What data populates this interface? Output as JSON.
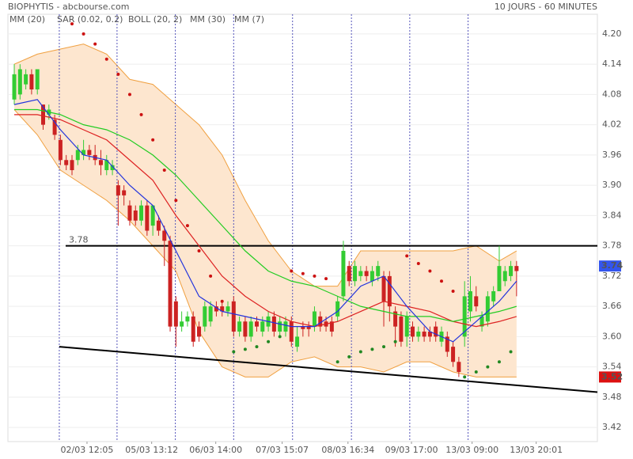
{
  "chart_data": {
    "type": "candlestick",
    "title": "BIOPHYTIS - abcbourse.com",
    "subtitle": "10 JOURS - 60 MINUTES",
    "xlim": [
      -1.1,
      101
    ],
    "ylim": [
      3.392,
      4.239
    ],
    "yticks": [
      {
        "value": 3.42,
        "label": "3.42"
      },
      {
        "value": 3.48,
        "label": "3.48"
      },
      {
        "value": 3.54,
        "label": "3.54"
      },
      {
        "value": 3.6,
        "label": "3.60"
      },
      {
        "value": 3.66,
        "label": "3.66"
      },
      {
        "value": 3.72,
        "label": "3.72"
      },
      {
        "value": 3.78,
        "label": "3.78"
      },
      {
        "value": 3.84,
        "label": "3.84"
      },
      {
        "value": 3.9,
        "label": "3.90"
      },
      {
        "value": 3.96,
        "label": "3.96"
      },
      {
        "value": 4.02,
        "label": "4.02"
      },
      {
        "value": 4.08,
        "label": "4.08"
      },
      {
        "value": 4.14,
        "label": "4.14"
      },
      {
        "value": 4.2,
        "label": "4.20"
      }
    ],
    "xticks": [
      {
        "value": 12.6,
        "label": "02/03 12:05"
      },
      {
        "value": 23.8,
        "label": "05/03 13:12"
      },
      {
        "value": 34.9,
        "label": "06/03 14:00"
      },
      {
        "value": 46.4,
        "label": "07/03 15:07"
      },
      {
        "value": 57.8,
        "label": "08/03 16:34"
      },
      {
        "value": 68.8,
        "label": "09/03 17:00"
      },
      {
        "value": 79.3,
        "label": "13/03 09:00"
      },
      {
        "value": 90.4,
        "label": "13/03 20:01"
      }
    ],
    "day_separators": [
      7.8,
      17.8,
      27.9,
      38,
      48.2,
      58.4,
      68.5,
      78.6
    ],
    "grid": true,
    "up_color": "#33cc33",
    "down_color": "#cc2222",
    "candles": {
      "open": [
        4.07,
        4.08,
        4.1,
        4.12,
        4.09,
        4.06,
        4.04,
        4.03,
        3.99,
        3.95,
        3.95,
        3.95,
        3.96,
        3.97,
        3.96,
        3.95,
        3.93,
        3.93,
        3.9,
        3.89,
        3.86,
        3.85,
        3.83,
        3.86,
        3.82,
        3.83,
        3.81,
        3.79,
        3.67,
        3.62,
        3.63,
        3.64,
        3.62,
        3.62,
        3.63,
        3.66,
        3.66,
        3.65,
        3.67,
        3.61,
        3.63,
        3.6,
        3.63,
        3.61,
        3.62,
        3.64,
        3.61,
        3.61,
        3.63,
        3.58,
        3.62,
        3.62,
        3.62,
        3.64,
        3.63,
        3.63,
        3.64,
        3.68,
        3.74,
        3.71,
        3.72,
        3.73,
        3.71,
        3.72,
        3.72,
        3.72,
        3.65,
        3.64,
        3.6,
        3.62,
        3.6,
        3.61,
        3.61,
        3.62,
        3.59,
        3.6,
        3.58,
        3.55,
        3.6,
        3.65,
        3.68,
        3.62,
        3.63,
        3.67,
        3.69,
        3.71,
        3.72,
        3.74
      ],
      "high": [
        4.14,
        4.14,
        4.13,
        4.13,
        4.13,
        4.06,
        4.06,
        4.04,
        4.0,
        3.96,
        3.96,
        3.98,
        3.99,
        3.98,
        3.98,
        3.97,
        3.96,
        3.95,
        3.91,
        3.9,
        3.87,
        3.86,
        3.87,
        3.87,
        3.86,
        3.84,
        3.82,
        3.8,
        3.68,
        3.65,
        3.65,
        3.65,
        3.63,
        3.67,
        3.67,
        3.67,
        3.67,
        3.67,
        3.68,
        3.64,
        3.64,
        3.64,
        3.64,
        3.64,
        3.65,
        3.65,
        3.64,
        3.64,
        3.64,
        3.62,
        3.63,
        3.63,
        3.66,
        3.65,
        3.64,
        3.64,
        3.68,
        3.79,
        3.75,
        3.75,
        3.74,
        3.74,
        3.74,
        3.75,
        3.73,
        3.73,
        3.66,
        3.65,
        3.65,
        3.63,
        3.62,
        3.62,
        3.62,
        3.63,
        3.62,
        3.61,
        3.59,
        3.56,
        3.71,
        3.72,
        3.7,
        3.65,
        3.69,
        3.7,
        3.78,
        3.74,
        3.75,
        3.75
      ],
      "low": [
        4.06,
        4.07,
        4.09,
        4.08,
        4.08,
        4.01,
        4.03,
        3.99,
        3.94,
        3.93,
        3.92,
        3.94,
        3.95,
        3.95,
        3.94,
        3.92,
        3.92,
        3.92,
        3.82,
        3.86,
        3.82,
        3.82,
        3.82,
        3.8,
        3.8,
        3.8,
        3.74,
        3.61,
        3.58,
        3.61,
        3.62,
        3.58,
        3.59,
        3.61,
        3.62,
        3.64,
        3.64,
        3.64,
        3.6,
        3.6,
        3.59,
        3.59,
        3.61,
        3.6,
        3.61,
        3.6,
        3.6,
        3.6,
        3.58,
        3.57,
        3.6,
        3.6,
        3.61,
        3.61,
        3.61,
        3.6,
        3.63,
        3.67,
        3.7,
        3.7,
        3.71,
        3.71,
        3.7,
        3.71,
        3.62,
        3.63,
        3.58,
        3.58,
        3.58,
        3.59,
        3.59,
        3.59,
        3.59,
        3.59,
        3.58,
        3.56,
        3.54,
        3.52,
        3.58,
        3.63,
        3.65,
        3.61,
        3.62,
        3.66,
        3.69,
        3.7,
        3.71,
        3.68
      ],
      "close": [
        4.12,
        4.13,
        4.12,
        4.09,
        4.13,
        4.02,
        4.05,
        4.0,
        3.95,
        3.94,
        3.93,
        3.97,
        3.97,
        3.96,
        3.95,
        3.94,
        3.95,
        3.94,
        3.88,
        3.88,
        3.83,
        3.83,
        3.86,
        3.81,
        3.86,
        3.81,
        3.79,
        3.62,
        3.62,
        3.63,
        3.64,
        3.59,
        3.6,
        3.66,
        3.66,
        3.65,
        3.65,
        3.66,
        3.61,
        3.63,
        3.6,
        3.63,
        3.62,
        3.63,
        3.64,
        3.61,
        3.63,
        3.63,
        3.59,
        3.6,
        3.615,
        3.615,
        3.65,
        3.62,
        3.62,
        3.61,
        3.67,
        3.77,
        3.71,
        3.74,
        3.73,
        3.72,
        3.73,
        3.74,
        3.67,
        3.66,
        3.62,
        3.59,
        3.64,
        3.6,
        3.61,
        3.6,
        3.6,
        3.6,
        3.61,
        3.57,
        3.55,
        3.53,
        3.68,
        3.69,
        3.66,
        3.64,
        3.68,
        3.69,
        3.74,
        3.73,
        3.74,
        3.73
      ]
    },
    "indicator_x": [
      0,
      4,
      8,
      12,
      16,
      20,
      24,
      28,
      32,
      36,
      40,
      44,
      48,
      52,
      56,
      60,
      64,
      68,
      72,
      76,
      80,
      84,
      87
    ],
    "series": [
      {
        "name": "MM (20)",
        "kind": "line",
        "color": "#dd2222",
        "values": [
          4.04,
          4.04,
          4.03,
          4.01,
          3.99,
          3.95,
          3.91,
          3.84,
          3.78,
          3.72,
          3.68,
          3.65,
          3.63,
          3.62,
          3.63,
          3.65,
          3.67,
          3.66,
          3.65,
          3.63,
          3.62,
          3.63,
          3.64
        ]
      },
      {
        "name": "SAR (0.02, 0.2)",
        "kind": "dots",
        "color": "#cc1111",
        "color_below": "#228822",
        "x": [
          10,
          12,
          14,
          16,
          18,
          20,
          22,
          24,
          26,
          28,
          30,
          32,
          34,
          36,
          38,
          40,
          42,
          44,
          46,
          48,
          50,
          52,
          54,
          56,
          58,
          60,
          62,
          64,
          66,
          68,
          70,
          72,
          74,
          76,
          78,
          80,
          82,
          84,
          86
        ],
        "values": [
          4.22,
          4.2,
          4.18,
          4.15,
          4.12,
          4.08,
          4.04,
          3.99,
          3.93,
          3.87,
          3.82,
          3.77,
          3.72,
          3.67,
          3.57,
          3.575,
          3.58,
          3.59,
          3.6,
          3.73,
          3.725,
          3.72,
          3.715,
          3.55,
          3.56,
          3.57,
          3.575,
          3.58,
          3.59,
          3.76,
          3.745,
          3.73,
          3.71,
          3.69,
          3.52,
          3.53,
          3.54,
          3.55,
          3.57
        ]
      },
      {
        "name": "BOLL (20, 2)",
        "kind": "band",
        "color": "#f0a040",
        "fill": "#fde6cf",
        "upper": [
          4.14,
          4.16,
          4.17,
          4.18,
          4.16,
          4.11,
          4.1,
          4.06,
          4.02,
          3.96,
          3.87,
          3.79,
          3.73,
          3.7,
          3.7,
          3.77,
          3.77,
          3.77,
          3.77,
          3.77,
          3.78,
          3.75,
          3.77
        ],
        "lower": [
          4.05,
          4.0,
          3.93,
          3.9,
          3.87,
          3.83,
          3.78,
          3.73,
          3.61,
          3.54,
          3.52,
          3.52,
          3.55,
          3.56,
          3.54,
          3.54,
          3.53,
          3.55,
          3.55,
          3.53,
          3.52,
          3.52,
          3.52
        ]
      },
      {
        "name": "MM (30)",
        "kind": "line",
        "color": "#22cc22",
        "values": [
          4.05,
          4.05,
          4.04,
          4.02,
          4.01,
          3.99,
          3.96,
          3.92,
          3.87,
          3.82,
          3.77,
          3.73,
          3.71,
          3.7,
          3.68,
          3.66,
          3.65,
          3.64,
          3.64,
          3.63,
          3.64,
          3.65,
          3.66
        ]
      },
      {
        "name": "MM (7)",
        "kind": "line",
        "color": "#2233dd",
        "values": [
          4.06,
          4.07,
          4.01,
          3.96,
          3.95,
          3.9,
          3.86,
          3.77,
          3.68,
          3.65,
          3.64,
          3.63,
          3.62,
          3.62,
          3.65,
          3.7,
          3.72,
          3.66,
          3.61,
          3.59,
          3.63,
          3.67,
          3.71
        ]
      }
    ],
    "trendlines": [
      {
        "x": [
          8.9,
          101
        ],
        "values": [
          3.78,
          3.78
        ],
        "label": 3.78
      },
      {
        "x": [
          7.8,
          101
        ],
        "values": [
          3.58,
          3.49
        ]
      }
    ],
    "last_labels": [
      {
        "value": 3.74,
        "color": "#3355ee"
      },
      {
        "value": 3.52,
        "color": "#dd1111"
      }
    ]
  }
}
